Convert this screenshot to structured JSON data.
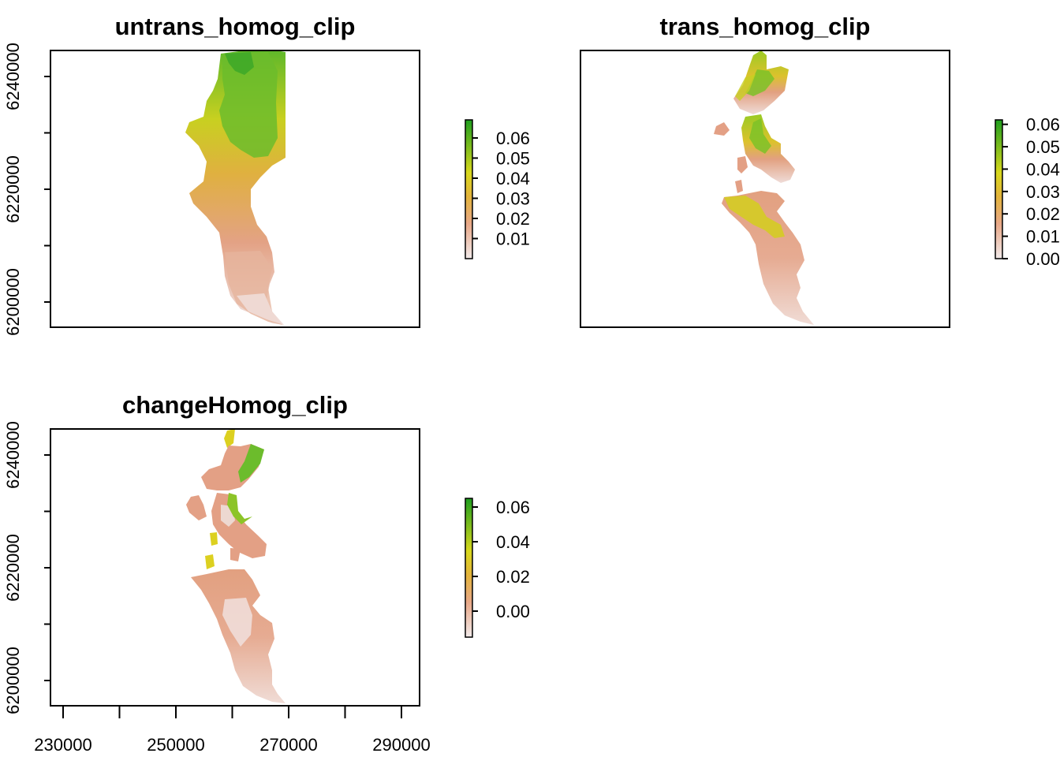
{
  "chart_data": [
    {
      "type": "heatmap",
      "title": "untrans_homog_clip",
      "xlabel": "",
      "ylabel": "",
      "xlim": [
        227000,
        293000
      ],
      "ylim": [
        6196000,
        6245000
      ],
      "y_ticks": [
        6200000,
        6220000,
        6240000
      ],
      "y_minor_ticks": [
        6200000,
        6210000,
        6220000,
        6230000,
        6240000
      ],
      "colorbar": {
        "range": [
          0.0,
          0.069
        ],
        "ticks": [
          "0.01",
          "0.02",
          "0.03",
          "0.04",
          "0.05",
          "0.06"
        ],
        "tick_values": [
          0.01,
          0.02,
          0.03,
          0.04,
          0.05,
          0.06
        ]
      }
    },
    {
      "type": "heatmap",
      "title": "trans_homog_clip",
      "xlabel": "",
      "ylabel": "",
      "xlim": [
        227000,
        293000
      ],
      "ylim": [
        6196000,
        6245000
      ],
      "colorbar": {
        "range": [
          0.0,
          0.062
        ],
        "ticks": [
          "0.06",
          "0.05",
          "0.04",
          "0.03",
          "0.02",
          "0.01",
          "0.00"
        ],
        "tick_values": [
          0.06,
          0.05,
          0.04,
          0.03,
          0.02,
          0.01,
          0.0
        ]
      }
    },
    {
      "type": "heatmap",
      "title": "changeHomog_clip",
      "xlabel": "",
      "ylabel": "",
      "xlim": [
        227000,
        293000
      ],
      "ylim": [
        6196000,
        6245000
      ],
      "x_ticks": [
        230000,
        250000,
        270000,
        290000
      ],
      "y_ticks": [
        6200000,
        6220000,
        6240000
      ],
      "colorbar": {
        "range": [
          -0.015,
          0.065
        ],
        "ticks": [
          "0.00",
          "0.02",
          "0.04",
          "0.06"
        ],
        "tick_values": [
          0.0,
          0.02,
          0.04,
          0.06
        ]
      }
    }
  ],
  "colors": {
    "low": "#f2eaea",
    "mid_low": "#e8a888",
    "mid": "#e3b43a",
    "mid_high": "#d8d81c",
    "high": "#1e9e1e"
  }
}
